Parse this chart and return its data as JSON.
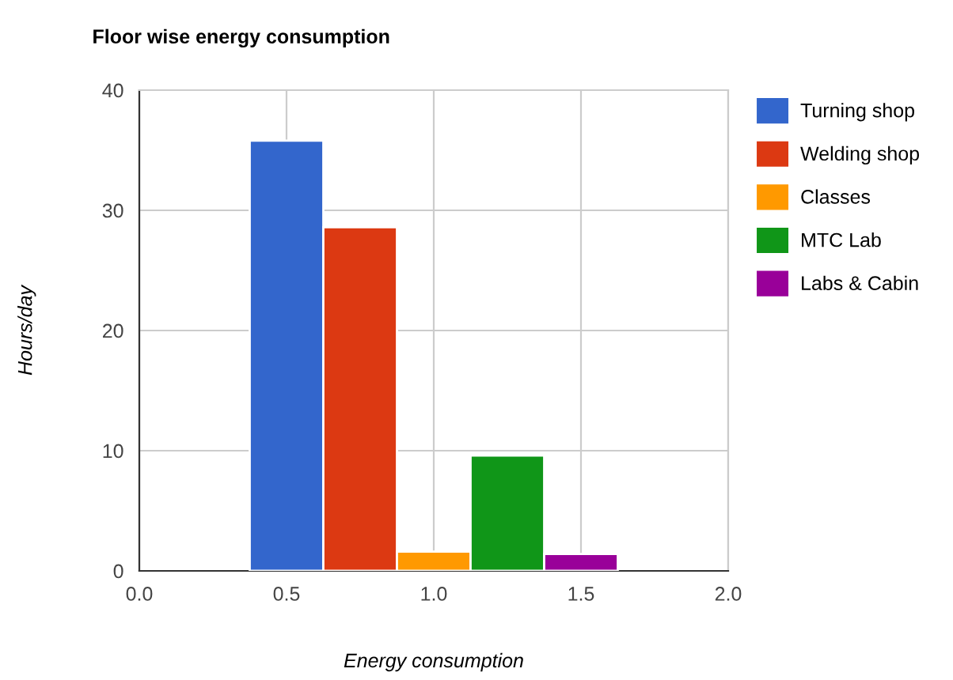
{
  "chart_data": {
    "type": "bar",
    "title": "Floor wise energy consumption",
    "xlabel": "Energy consumption",
    "ylabel": "Hours/day",
    "series": [
      {
        "name": "Turning shop",
        "color": "#3366cc",
        "x": [
          0.5
        ],
        "values": [
          35.8
        ]
      },
      {
        "name": "Welding shop",
        "color": "#dc3912",
        "x": [
          0.75
        ],
        "values": [
          28.6
        ]
      },
      {
        "name": "Classes",
        "color": "#ff9900",
        "x": [
          1.0
        ],
        "values": [
          1.6
        ]
      },
      {
        "name": "MTC Lab",
        "color": "#109618",
        "x": [
          1.25
        ],
        "values": [
          9.6
        ]
      },
      {
        "name": "Labs & Cabin",
        "color": "#990099",
        "x": [
          1.5
        ],
        "values": [
          1.4
        ]
      }
    ],
    "xlim": [
      0.0,
      2.0
    ],
    "xticks": [
      {
        "value": 0,
        "label": "0.0"
      },
      0.5,
      {
        "value": 1,
        "label": "1.0"
      },
      1.5,
      {
        "value": 2,
        "label": "2.0"
      }
    ],
    "ylim": [
      0,
      40
    ],
    "yticks": [
      0,
      10,
      20,
      30,
      40
    ],
    "grid": true,
    "legend": "right"
  }
}
